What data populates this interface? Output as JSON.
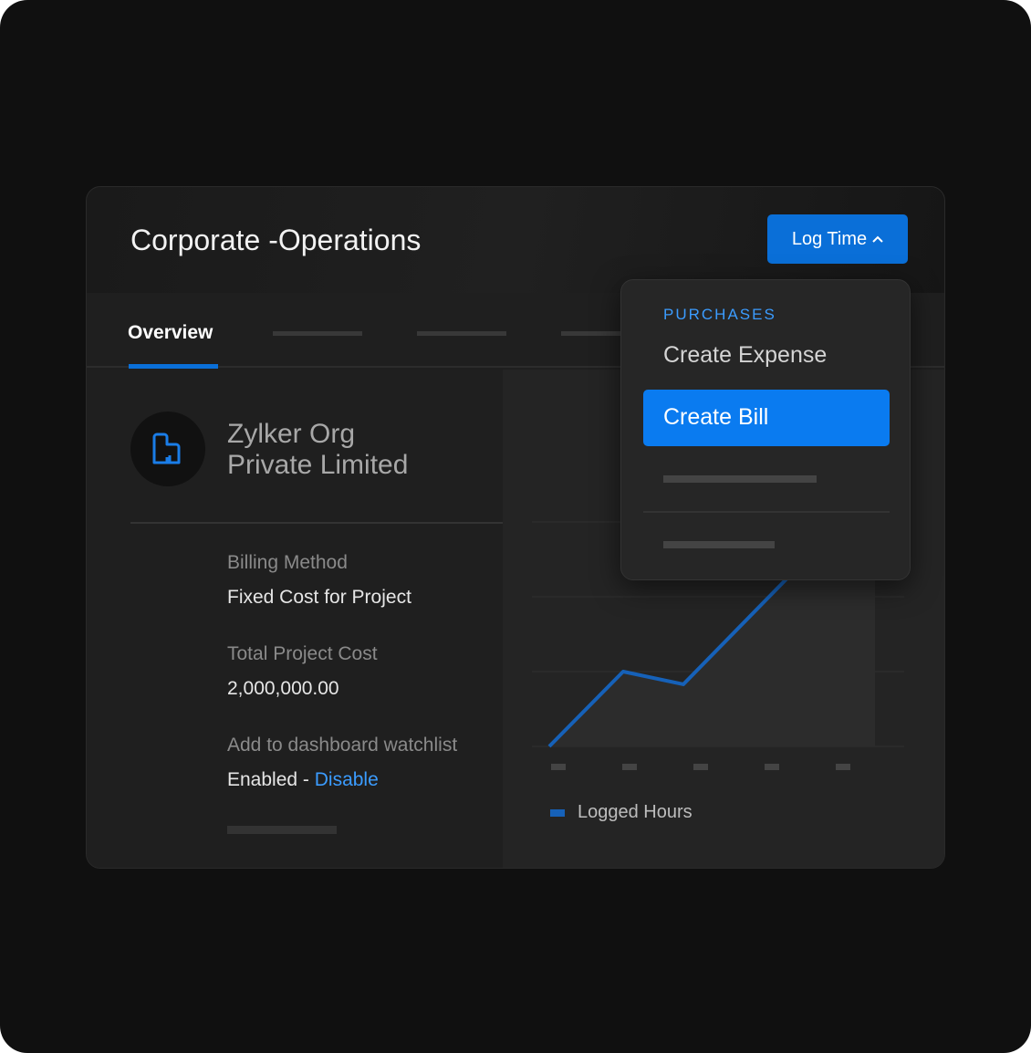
{
  "header": {
    "title": "Corporate -Operations",
    "log_time_label": "Log Time",
    "log_time_icon": "chevron-up-icon"
  },
  "tabs": {
    "active": "Overview"
  },
  "org": {
    "name_line1": "Zylker Org",
    "name_line2": "Private Limited",
    "icon": "building-icon"
  },
  "details": [
    {
      "label": "Billing Method",
      "value": "Fixed Cost for Project"
    },
    {
      "label": "Total Project Cost",
      "value": "2,000,000.00"
    },
    {
      "label": "Add to dashboard watchlist",
      "value": "Enabled - ",
      "link": "Disable"
    }
  ],
  "dropdown": {
    "section": "PURCHASES",
    "items": [
      "Create Expense",
      "Create Bill"
    ],
    "highlighted": "Create Bill"
  },
  "colors": {
    "accent": "#0a7bf0",
    "link": "#3b9cff",
    "series": "#1661b8"
  },
  "chart_data": {
    "type": "area",
    "series": [
      {
        "name": "Logged Hours",
        "values": [
          0,
          1,
          0.83,
          2.25,
          3.4
        ]
      }
    ],
    "categories": [
      "",
      "",
      "",
      "",
      ""
    ],
    "ylim": [
      0,
      3
    ],
    "grid": true,
    "legend": "bottom-left"
  }
}
